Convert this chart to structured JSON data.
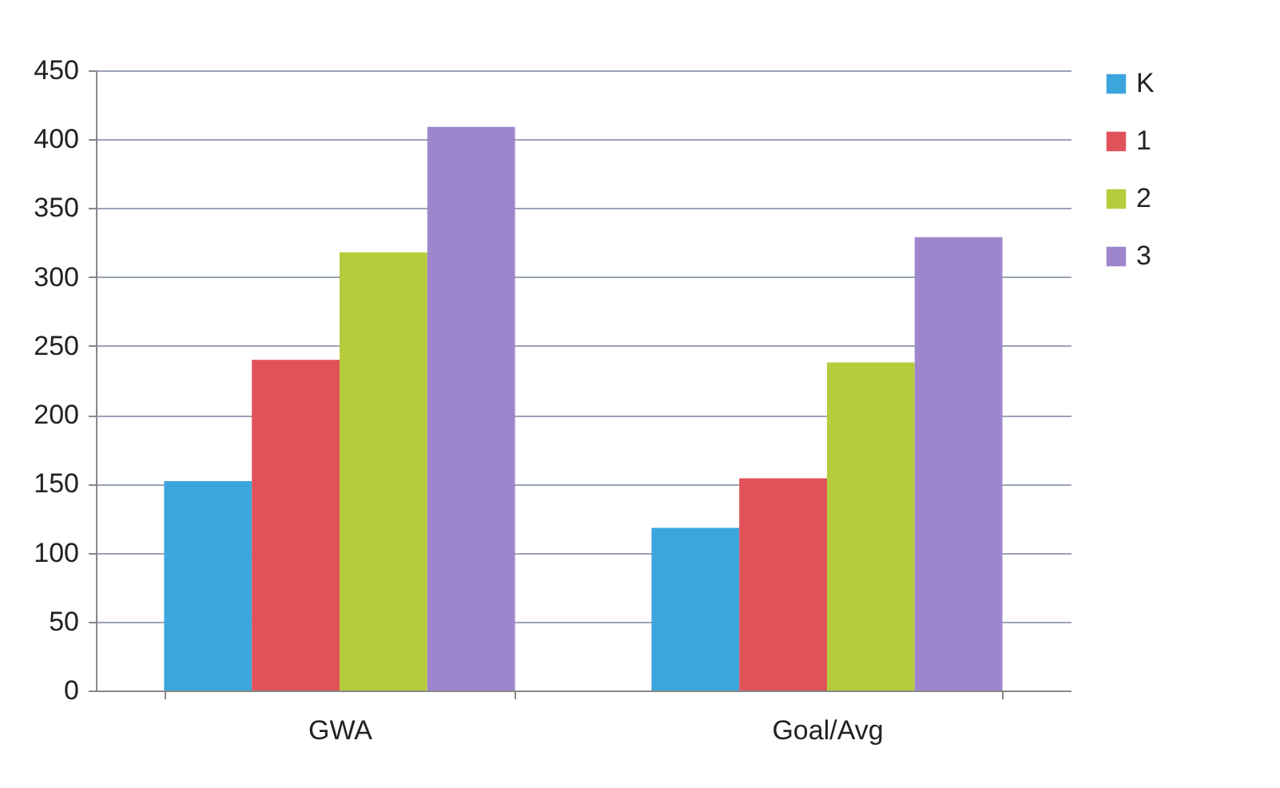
{
  "chart_data": {
    "type": "bar",
    "categories": [
      "GWA",
      "Goal/Avg"
    ],
    "series": [
      {
        "name": "K",
        "color": "#3ca6dc",
        "values": [
          152,
          118
        ]
      },
      {
        "name": "1",
        "color": "#e0525a",
        "values": [
          240,
          154
        ]
      },
      {
        "name": "2",
        "color": "#b6cc3c",
        "values": [
          318,
          238
        ]
      },
      {
        "name": "3",
        "color": "#9e86cc",
        "values": [
          409,
          329
        ]
      }
    ],
    "ylim": [
      0,
      450
    ],
    "yticks": [
      0,
      50,
      100,
      150,
      200,
      250,
      300,
      350,
      400,
      450
    ],
    "grid": "y",
    "legend": "right"
  }
}
